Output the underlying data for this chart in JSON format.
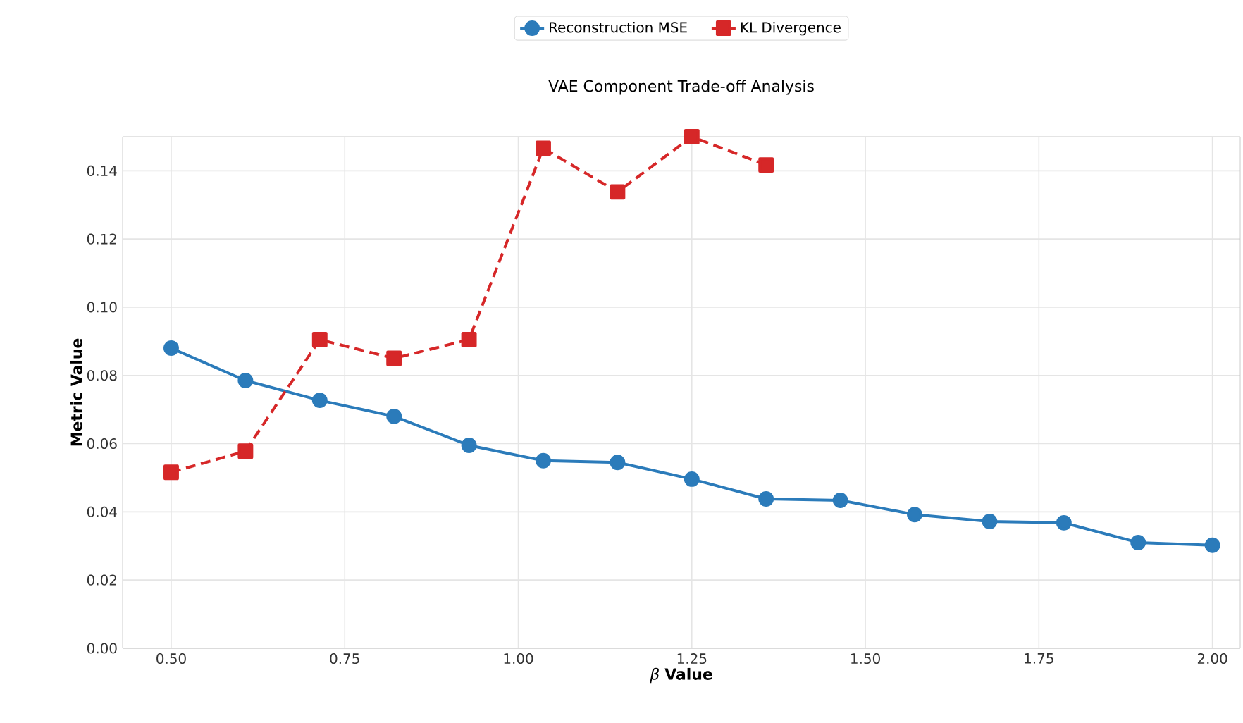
{
  "chart_data": {
    "type": "line",
    "title": "VAE Component Trade-off Analysis",
    "xlabel": "*β* **Value**",
    "ylabel": "Metric Value",
    "x": [
      0.5,
      0.607,
      0.714,
      0.821,
      0.929,
      1.036,
      1.143,
      1.25,
      1.357,
      1.464,
      1.571,
      1.679,
      1.786,
      1.893,
      2.0
    ],
    "series": [
      {
        "name": "Reconstruction MSE",
        "color": "#2b7bba",
        "marker": "circle",
        "line_style": "solid",
        "values": [
          0.088,
          0.0785,
          0.0727,
          0.068,
          0.0595,
          0.055,
          0.0545,
          0.0496,
          0.0438,
          0.0434,
          0.0392,
          0.0372,
          0.0368,
          0.031,
          0.0302
        ]
      },
      {
        "name": "KL Divergence",
        "color": "#d62728",
        "marker": "square",
        "line_style": "dashed",
        "values": [
          0.0516,
          0.0578,
          0.0905,
          0.085,
          0.0905,
          0.1466,
          0.1338,
          0.15,
          0.1417,
          null,
          null,
          null,
          null,
          null,
          null
        ]
      }
    ],
    "xlim": [
      0.43,
      2.04
    ],
    "ylim": [
      0,
      0.15
    ],
    "xticks": [
      {
        "value": 0.5,
        "label": "0.50"
      },
      {
        "value": 0.75,
        "label": "0.75"
      },
      {
        "value": 1.0,
        "label": "1.00"
      },
      {
        "value": 1.25,
        "label": "1.25"
      },
      {
        "value": 1.5,
        "label": "1.50"
      },
      {
        "value": 1.75,
        "label": "1.75"
      },
      {
        "value": 2.0,
        "label": "2.00"
      }
    ],
    "yticks": [
      {
        "value": 0,
        "label": "0.00"
      },
      {
        "value": 0.02,
        "label": "0.02"
      },
      {
        "value": 0.04,
        "label": "0.04"
      },
      {
        "value": 0.06,
        "label": "0.06"
      },
      {
        "value": 0.08,
        "label": "0.08"
      },
      {
        "value": 0.1,
        "label": "0.10"
      },
      {
        "value": 0.12,
        "label": "0.12"
      },
      {
        "value": 0.14,
        "label": "0.14"
      }
    ],
    "grid": true,
    "legend": "top"
  }
}
